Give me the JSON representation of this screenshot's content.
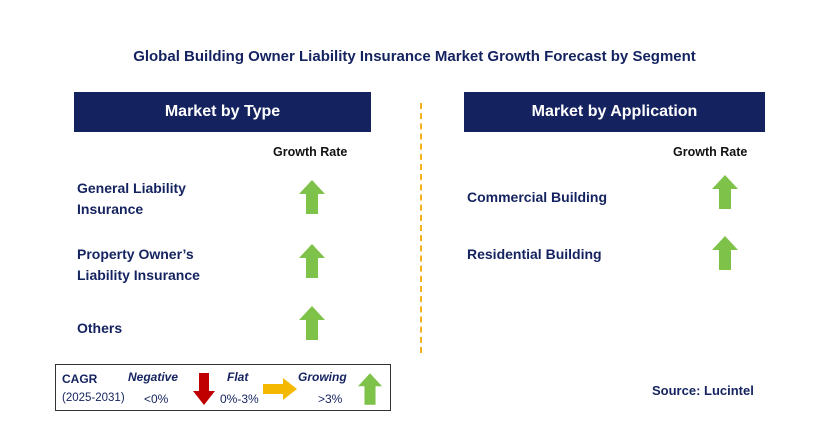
{
  "title": "Global Building Owner Liability Insurance Market Growth Forecast by Segment",
  "left_panel": {
    "header": "Market by Type",
    "rate_label": "Growth Rate",
    "rows": [
      {
        "line1": "General Liability",
        "line2": "Insurance",
        "trend": "growing"
      },
      {
        "line1": "Property Owner’s",
        "line2": "Liability Insurance",
        "trend": "growing"
      },
      {
        "line1": "Others",
        "line2": "",
        "trend": "growing"
      }
    ]
  },
  "right_panel": {
    "header": "Market by Application",
    "rate_label": "Growth Rate",
    "rows": [
      {
        "line1": "Commercial Building",
        "trend": "growing"
      },
      {
        "line1": "Residential Building",
        "trend": "growing"
      }
    ]
  },
  "legend": {
    "cagr_label": "CAGR",
    "period": "(2025-2031)",
    "negative_label": "Negative",
    "negative_value": "<0%",
    "flat_label": "Flat",
    "flat_value": "0%-3%",
    "growing_label": "Growing",
    "growing_value": ">3%"
  },
  "source": "Source: Lucintel",
  "colors": {
    "header_bg": "#14235f",
    "up_arrow": "#7fc24a",
    "down_arrow": "#c00000",
    "flat_arrow": "#f5b800",
    "divider": "#f2b01e"
  }
}
